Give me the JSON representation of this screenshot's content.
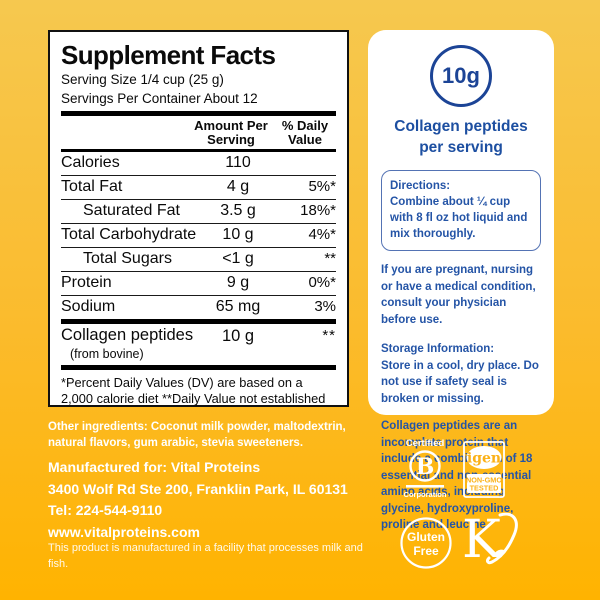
{
  "background": {
    "gradient_top": "#F6C84F",
    "gradient_bottom": "#FFB300"
  },
  "supplement_facts": {
    "title": "Supplement Facts",
    "serving_size": "Serving Size 1/4 cup (25 g)",
    "servings_per_container": "Servings Per Container About 12",
    "amount_header": [
      "Amount Per",
      "Serving"
    ],
    "dv_header": [
      "% Daily",
      "Value"
    ],
    "rows": [
      {
        "label": "Calories",
        "amount": "110",
        "dv": "",
        "indent": false
      },
      {
        "label": "Total Fat",
        "amount": "4 g",
        "dv": "5%*",
        "indent": false
      },
      {
        "label": "Saturated Fat",
        "amount": "3.5 g",
        "dv": "18%*",
        "indent": true
      },
      {
        "label": "Total Carbohydrate",
        "amount": "10 g",
        "dv": "4%*",
        "indent": false
      },
      {
        "label": "Total Sugars",
        "amount": "<1 g",
        "dv": "**",
        "indent": true
      },
      {
        "label": "Protein",
        "amount": "9 g",
        "dv": "0%*",
        "indent": false
      },
      {
        "label": "Sodium",
        "amount": "65 mg",
        "dv": "3%",
        "indent": false
      }
    ],
    "collagen_row": {
      "label": "Collagen peptides",
      "sublabel": "(from bovine)",
      "amount": "10 g",
      "dv": "**"
    },
    "footnote": "*Percent Daily Values (DV) are based on a 2,000 calorie diet **Daily Value not established"
  },
  "highlight_panel": {
    "amount": "10g",
    "subtitle_line1": "Collagen peptides",
    "subtitle_line2": "per serving",
    "directions_title": "Directions:",
    "directions_body": "Combine about ¼ cup with 8 fl oz hot liquid and mix thoroughly.",
    "pregnancy_note": "If you are pregnant, nursing or have a medical condition, consult your physician before use.",
    "storage_title": "Storage Information:",
    "storage_body": "Store in a cool, dry place. Do not use if safety seal is broken or missing.",
    "collagen_note": "Collagen peptides are an incomplete protein that include a combination of 18 essential and non-essential amino acids, including glycine, hydroxyproline, proline and leucine.",
    "text_color": "#2454A6",
    "accent_color": "#1C4496"
  },
  "footer": {
    "other_ingredients": "Other ingredients: Coconut milk powder, maltodextrin, natural flavors, gum arabic, stevia sweeteners.",
    "manufactured_for": "Manufactured for: Vital Proteins",
    "address": "3400 Wolf Rd Ste 200, Franklin Park, IL 60131",
    "tel": "Tel: 224-544-9110",
    "website": "www.vitalproteins.com",
    "disclaimer": "This product is manufactured in a facility that processes milk and fish."
  },
  "badges": {
    "b_corp": {
      "top": "Certified",
      "letter": "B",
      "bottom": "Corporation"
    },
    "igen": {
      "brand": "igen",
      "sub_line1": "NON-GMO",
      "sub_line2": "TESTED"
    },
    "gluten_free": {
      "line1": "Gluten",
      "line2": "Free"
    },
    "kosher": {
      "letter": "K"
    }
  }
}
